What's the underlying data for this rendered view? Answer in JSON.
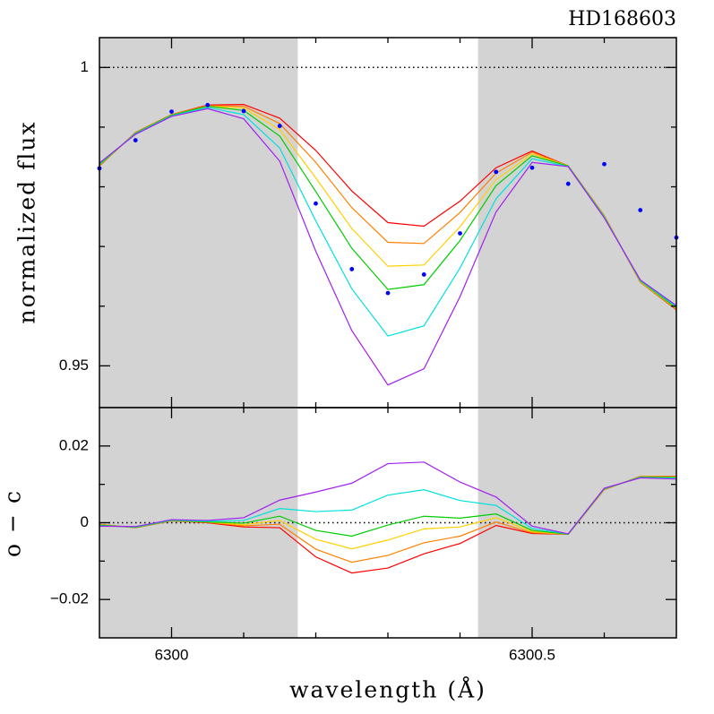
{
  "chart_data": [
    {
      "type": "line",
      "title": "HD168603",
      "ylabel": "normalized flux",
      "x": [
        6299.9,
        6299.95,
        6300.0,
        6300.05,
        6300.1,
        6300.15,
        6300.2,
        6300.25,
        6300.3,
        6300.35,
        6300.4,
        6300.45,
        6300.5,
        6300.55,
        6300.6,
        6300.65,
        6300.7
      ],
      "xlim": [
        6299.9,
        6300.7
      ],
      "xticks": [
        6300,
        6300.5
      ],
      "xminor": [
        6300.1,
        6300.2,
        6300.3,
        6300.4,
        6300.6
      ],
      "ylim": [
        0.943,
        1.005
      ],
      "yticks": [
        0.95,
        1
      ],
      "yminor": [
        0.96,
        0.97,
        0.98,
        0.99
      ],
      "ref_line": 1,
      "shaded_regions": [
        [
          6299.9,
          6300.175
        ],
        [
          6300.425,
          6300.7
        ]
      ],
      "shade_color": "#d3d3d3",
      "series": [
        {
          "color": "#ff0000",
          "values": [
            0.9835,
            0.9891,
            0.9921,
            0.9937,
            0.9938,
            0.9915,
            0.9861,
            0.9793,
            0.974,
            0.9734,
            0.9776,
            0.9832,
            0.986,
            0.9835,
            0.9752,
            0.964,
            0.9594
          ]
        },
        {
          "color": "#ff8000",
          "values": [
            0.9836,
            0.9891,
            0.9921,
            0.9936,
            0.9935,
            0.9906,
            0.9841,
            0.9765,
            0.9707,
            0.9705,
            0.9757,
            0.9823,
            0.9858,
            0.9835,
            0.9752,
            0.964,
            0.9595
          ]
        },
        {
          "color": "#ffd000",
          "values": [
            0.9836,
            0.989,
            0.992,
            0.9935,
            0.9932,
            0.9896,
            0.9815,
            0.973,
            0.9667,
            0.9669,
            0.9733,
            0.9812,
            0.9855,
            0.9835,
            0.9751,
            0.9641,
            0.9596
          ]
        },
        {
          "color": "#00cc00",
          "values": [
            0.9837,
            0.989,
            0.992,
            0.9935,
            0.9928,
            0.9885,
            0.9792,
            0.9697,
            0.9628,
            0.9636,
            0.971,
            0.9802,
            0.9852,
            0.9835,
            0.975,
            0.9642,
            0.9597
          ]
        },
        {
          "color": "#00e0e0",
          "values": [
            0.9839,
            0.9889,
            0.9919,
            0.9933,
            0.9921,
            0.9865,
            0.9743,
            0.9629,
            0.955,
            0.9567,
            0.9664,
            0.978,
            0.9847,
            0.9834,
            0.9749,
            0.9643,
            0.9599
          ]
        },
        {
          "color": "#a020f0",
          "values": [
            0.984,
            0.9888,
            0.9918,
            0.9931,
            0.9914,
            0.9843,
            0.9692,
            0.9559,
            0.9468,
            0.9495,
            0.9616,
            0.9758,
            0.9841,
            0.9834,
            0.9748,
            0.9644,
            0.9601
          ]
        },
        {
          "color": "#0000ff",
          "style": "points",
          "values": [
            0.9831,
            0.9878,
            0.9926,
            0.9937,
            0.9927,
            0.9902,
            0.9772,
            0.9662,
            0.9622,
            0.9653,
            0.9722,
            0.9825,
            0.9832,
            0.9805,
            0.9838,
            0.9761,
            0.9715
          ]
        }
      ]
    },
    {
      "type": "line",
      "ylabel": "o − c",
      "xlabel": "wavelength (Å)",
      "x": [
        6299.9,
        6299.95,
        6300.0,
        6300.05,
        6300.1,
        6300.15,
        6300.2,
        6300.25,
        6300.3,
        6300.35,
        6300.4,
        6300.45,
        6300.5,
        6300.55,
        6300.6,
        6300.65,
        6300.7
      ],
      "xlim": [
        6299.9,
        6300.7
      ],
      "xticks": [
        6300,
        6300.5
      ],
      "xminor": [
        6300.1,
        6300.2,
        6300.3,
        6300.4,
        6300.6
      ],
      "ylim": [
        -0.03,
        0.03
      ],
      "yticks": [
        {
          "value": -0.02,
          "label": "−0.02"
        },
        0,
        0.02
      ],
      "yminor": [
        -0.01,
        0.01
      ],
      "ref_line": 0,
      "shaded_regions": [
        [
          6299.9,
          6300.175
        ],
        [
          6300.425,
          6300.7
        ]
      ],
      "shade_color": "#d3d3d3",
      "series": [
        {
          "color": "#ff0000",
          "values": [
            -0.0004,
            -0.0013,
            0.0005,
            0.0,
            -0.0011,
            -0.0013,
            -0.0089,
            -0.0131,
            -0.0118,
            -0.0081,
            -0.0054,
            -0.0007,
            -0.0028,
            -0.003,
            0.0086,
            0.0121,
            0.0121
          ]
        },
        {
          "color": "#ff8000",
          "values": [
            -0.0005,
            -0.0013,
            0.0005,
            0.0001,
            -0.0008,
            -0.0004,
            -0.0069,
            -0.0103,
            -0.0085,
            -0.0052,
            -0.0035,
            0.0002,
            -0.0026,
            -0.003,
            0.0086,
            0.0121,
            0.012
          ]
        },
        {
          "color": "#ffd000",
          "values": [
            -0.0005,
            -0.0012,
            0.0006,
            0.0002,
            -0.0005,
            0.0006,
            -0.0043,
            -0.0068,
            -0.0045,
            -0.0016,
            -0.0011,
            0.0013,
            -0.0023,
            -0.003,
            0.0087,
            0.012,
            0.0119
          ]
        },
        {
          "color": "#00cc00",
          "values": [
            -0.0006,
            -0.0012,
            0.0006,
            0.0002,
            -0.0001,
            0.0017,
            -0.002,
            -0.0035,
            -0.0006,
            0.0017,
            0.0012,
            0.0023,
            -0.002,
            -0.003,
            0.0088,
            0.0119,
            0.0118
          ]
        },
        {
          "color": "#00e0e0",
          "values": [
            -0.0008,
            -0.0011,
            0.0007,
            0.0004,
            0.0006,
            0.0037,
            0.0029,
            0.0033,
            0.0072,
            0.0086,
            0.0058,
            0.0045,
            -0.0015,
            -0.0029,
            0.0089,
            0.0118,
            0.0116
          ]
        },
        {
          "color": "#a020f0",
          "values": [
            -0.0009,
            -0.001,
            0.0008,
            0.0006,
            0.0013,
            0.0059,
            0.008,
            0.0103,
            0.0154,
            0.0158,
            0.0106,
            0.0067,
            -0.0009,
            -0.0029,
            0.009,
            0.0117,
            0.0114
          ]
        }
      ]
    }
  ]
}
